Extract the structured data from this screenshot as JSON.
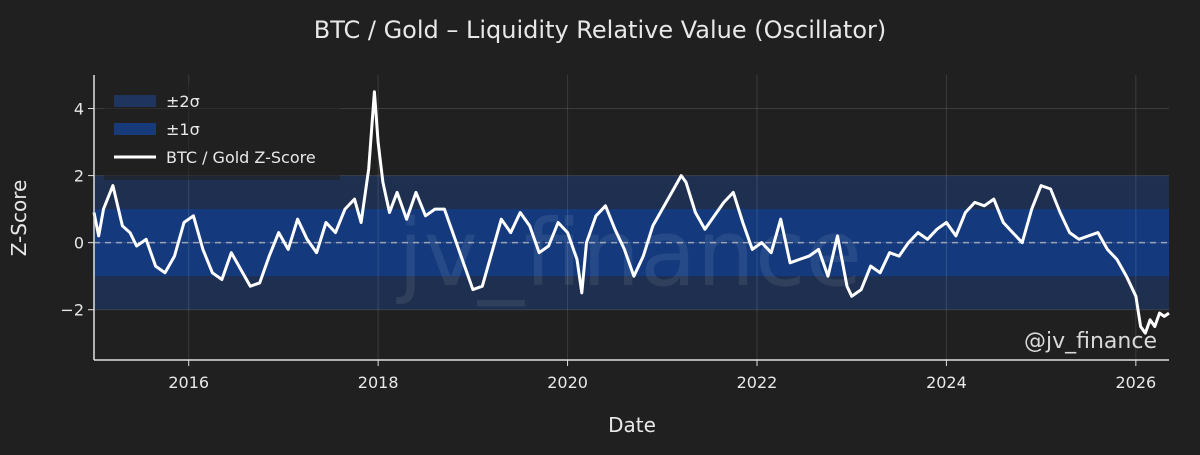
{
  "chart_data": {
    "type": "line",
    "title": "BTC / Gold – Liquidity Relative Value (Oscillator)",
    "xlabel": "Date",
    "ylabel": "Z-Score",
    "xlim": [
      2015.0,
      2026.35
    ],
    "ylim": [
      -3.5,
      5.0
    ],
    "x_ticks": [
      2016,
      2018,
      2020,
      2022,
      2024,
      2026
    ],
    "y_ticks": [
      -2,
      0,
      2,
      4
    ],
    "y_tick_labels": [
      "−2",
      "0",
      "2",
      "4"
    ],
    "grid": true,
    "legend_position": "top-left",
    "legend": [
      {
        "label": "±2σ",
        "kind": "band",
        "color": "#1f3560"
      },
      {
        "label": "±1σ",
        "kind": "band",
        "color": "#163a7a"
      },
      {
        "label": "BTC / Gold Z-Score",
        "kind": "line",
        "color": "#ffffff"
      }
    ],
    "bands": [
      {
        "name": "±2σ",
        "lower": -2,
        "upper": 2,
        "color": "#1e2f4f"
      },
      {
        "name": "±1σ",
        "lower": -1,
        "upper": 1,
        "color": "#143a7d"
      }
    ],
    "zero_line": {
      "y": 0,
      "color": "#9aa3b5",
      "style": "dashed"
    },
    "series": [
      {
        "name": "BTC / Gold Z-Score",
        "color": "#ffffff",
        "x": [
          2015.0,
          2015.05,
          2015.1,
          2015.2,
          2015.3,
          2015.38,
          2015.45,
          2015.55,
          2015.65,
          2015.75,
          2015.85,
          2015.95,
          2016.05,
          2016.15,
          2016.25,
          2016.35,
          2016.45,
          2016.55,
          2016.65,
          2016.75,
          2016.85,
          2016.95,
          2017.05,
          2017.15,
          2017.25,
          2017.35,
          2017.45,
          2017.55,
          2017.65,
          2017.75,
          2017.82,
          2017.9,
          2017.96,
          2018.0,
          2018.05,
          2018.12,
          2018.2,
          2018.3,
          2018.4,
          2018.5,
          2018.6,
          2018.7,
          2018.8,
          2018.9,
          2019.0,
          2019.1,
          2019.2,
          2019.3,
          2019.4,
          2019.5,
          2019.6,
          2019.7,
          2019.8,
          2019.9,
          2020.0,
          2020.1,
          2020.15,
          2020.2,
          2020.3,
          2020.4,
          2020.5,
          2020.6,
          2020.7,
          2020.8,
          2020.9,
          2021.0,
          2021.1,
          2021.2,
          2021.25,
          2021.35,
          2021.45,
          2021.55,
          2021.65,
          2021.75,
          2021.85,
          2021.95,
          2022.05,
          2022.15,
          2022.25,
          2022.35,
          2022.45,
          2022.55,
          2022.65,
          2022.75,
          2022.85,
          2022.95,
          2023.0,
          2023.1,
          2023.2,
          2023.3,
          2023.4,
          2023.5,
          2023.6,
          2023.7,
          2023.8,
          2023.9,
          2024.0,
          2024.1,
          2024.2,
          2024.3,
          2024.4,
          2024.5,
          2024.6,
          2024.7,
          2024.8,
          2024.9,
          2025.0,
          2025.1,
          2025.2,
          2025.3,
          2025.4,
          2025.5,
          2025.6,
          2025.7,
          2025.8,
          2025.9,
          2026.0,
          2026.05,
          2026.1,
          2026.15,
          2026.2,
          2026.25,
          2026.3,
          2026.35
        ],
        "y": [
          0.9,
          0.2,
          1.0,
          1.7,
          0.5,
          0.3,
          -0.1,
          0.1,
          -0.7,
          -0.9,
          -0.4,
          0.6,
          0.8,
          -0.2,
          -0.9,
          -1.1,
          -0.3,
          -0.8,
          -1.3,
          -1.2,
          -0.4,
          0.3,
          -0.2,
          0.7,
          0.1,
          -0.3,
          0.6,
          0.3,
          1.0,
          1.3,
          0.6,
          2.2,
          4.5,
          3.0,
          1.8,
          0.9,
          1.5,
          0.7,
          1.5,
          0.8,
          1.0,
          1.0,
          0.2,
          -0.6,
          -1.4,
          -1.3,
          -0.3,
          0.7,
          0.3,
          0.9,
          0.5,
          -0.3,
          -0.1,
          0.6,
          0.3,
          -0.5,
          -1.5,
          0.0,
          0.8,
          1.1,
          0.4,
          -0.2,
          -1.0,
          -0.4,
          0.5,
          1.0,
          1.5,
          2.0,
          1.8,
          0.9,
          0.4,
          0.8,
          1.2,
          1.5,
          0.6,
          -0.2,
          0.0,
          -0.3,
          0.7,
          -0.6,
          -0.5,
          -0.4,
          -0.2,
          -1.0,
          0.2,
          -1.3,
          -1.6,
          -1.4,
          -0.7,
          -0.9,
          -0.3,
          -0.4,
          0.0,
          0.3,
          0.1,
          0.4,
          0.6,
          0.2,
          0.9,
          1.2,
          1.1,
          1.3,
          0.6,
          0.3,
          0.0,
          1.0,
          1.7,
          1.6,
          0.9,
          0.3,
          0.1,
          0.2,
          0.3,
          -0.2,
          -0.5,
          -1.0,
          -1.6,
          -2.5,
          -2.7,
          -2.3,
          -2.5,
          -2.1,
          -2.2,
          -2.1
        ]
      }
    ],
    "watermark": "jv_finance",
    "handle": "@jv_finance"
  }
}
